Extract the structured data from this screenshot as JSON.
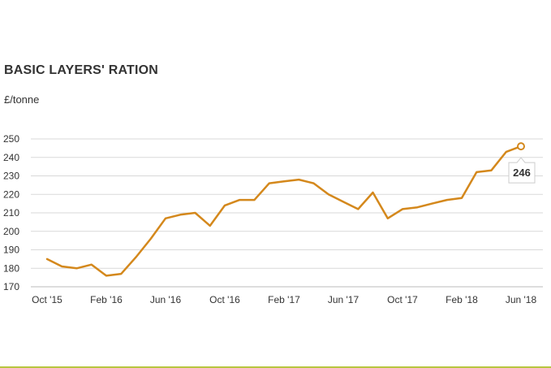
{
  "chart_data": {
    "type": "line",
    "title": "BASIC LAYERS' RATION",
    "ylabel": "£/tonne",
    "xlabel": "",
    "ylim": [
      170,
      250
    ],
    "yticks": [
      170,
      180,
      190,
      200,
      210,
      220,
      230,
      240,
      250
    ],
    "xticks": [
      "Oct '15",
      "Feb '16",
      "Jun '16",
      "Oct '16",
      "Feb '17",
      "Jun '17",
      "Oct '17",
      "Feb '18",
      "Jun '18"
    ],
    "grid": true,
    "color": "#d4881c",
    "x": [
      "Oct '15",
      "Nov '15",
      "Dec '15",
      "Jan '16",
      "Feb '16",
      "Mar '16",
      "Apr '16",
      "May '16",
      "Jun '16",
      "Jul '16",
      "Aug '16",
      "Sep '16",
      "Oct '16",
      "Nov '16",
      "Dec '16",
      "Jan '17",
      "Feb '17",
      "Mar '17",
      "Apr '17",
      "May '17",
      "Jun '17",
      "Jul '17",
      "Aug '17",
      "Sep '17",
      "Oct '17",
      "Nov '17",
      "Dec '17",
      "Jan '18",
      "Feb '18",
      "Mar '18",
      "Apr '18",
      "May '18",
      "Jun '18"
    ],
    "series": [
      {
        "values": [
          185,
          181,
          180,
          182,
          176,
          177,
          186,
          196,
          207,
          209,
          210,
          203,
          214,
          217,
          217,
          226,
          227,
          228,
          226,
          220,
          216,
          212,
          221,
          207,
          212,
          213,
          215,
          217,
          218,
          232,
          233,
          243,
          246
        ]
      }
    ],
    "highlight": {
      "label": "246"
    }
  }
}
